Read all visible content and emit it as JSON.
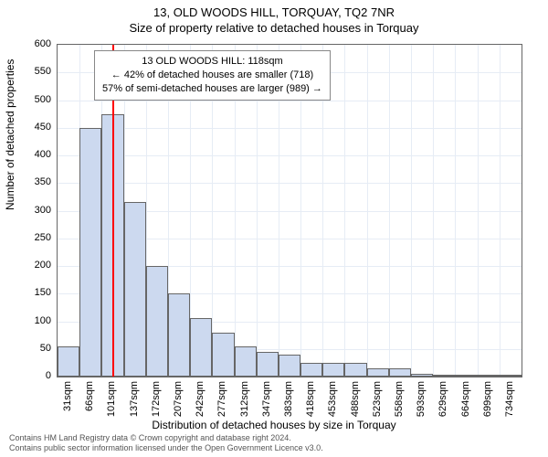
{
  "title": "13, OLD WOODS HILL, TORQUAY, TQ2 7NR",
  "subtitle": "Size of property relative to detached houses in Torquay",
  "y_axis_title": "Number of detached properties",
  "x_axis_title": "Distribution of detached houses by size in Torquay",
  "chart": {
    "type": "histogram",
    "ylim": [
      0,
      600
    ],
    "ytick_step": 50,
    "x_categories": [
      "31sqm",
      "66sqm",
      "101sqm",
      "137sqm",
      "172sqm",
      "207sqm",
      "242sqm",
      "277sqm",
      "312sqm",
      "347sqm",
      "383sqm",
      "418sqm",
      "453sqm",
      "488sqm",
      "523sqm",
      "558sqm",
      "593sqm",
      "629sqm",
      "664sqm",
      "699sqm",
      "734sqm"
    ],
    "values": [
      55,
      450,
      475,
      315,
      200,
      150,
      105,
      80,
      55,
      45,
      40,
      25,
      25,
      25,
      15,
      15,
      5,
      2,
      2,
      2,
      2
    ],
    "bar_fill": "#ccd9ef",
    "bar_stroke": "#666666",
    "background": "#ffffff",
    "grid_color": "#e6ecf5",
    "marker_value_sqm": 118,
    "marker_color": "#ff0000"
  },
  "annotation": {
    "line1": "13 OLD WOODS HILL: 118sqm",
    "line2": "← 42% of detached houses are smaller (718)",
    "line3": "57% of semi-detached houses are larger (989) →",
    "border": "#888888",
    "bg": "#ffffff"
  },
  "attribution": {
    "line1": "Contains HM Land Registry data © Crown copyright and database right 2024.",
    "line2": "Contains public sector information licensed under the Open Government Licence v3.0."
  },
  "fontsize": {
    "title": 13,
    "subtitle": 13,
    "axis_title": 12,
    "tick": 11,
    "annotation": 11,
    "attribution": 9
  },
  "colors": {
    "text": "#000000",
    "border": "#666666"
  }
}
